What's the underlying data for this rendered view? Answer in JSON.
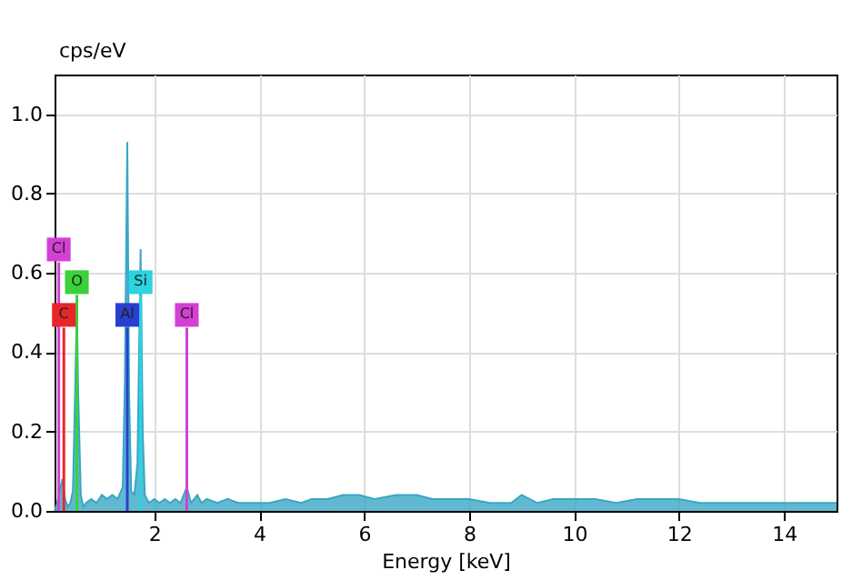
{
  "chart_data": {
    "type": "area",
    "xlabel": "Energy [keV]",
    "ylabel": "cps/eV",
    "xlim": [
      0.1,
      15
    ],
    "ylim": [
      0,
      1.1
    ],
    "xticks": [
      2,
      4,
      6,
      8,
      10,
      12,
      14
    ],
    "yticks": [
      {
        "value": 0,
        "label": "0.0"
      },
      0.2,
      0.4,
      0.6,
      0.8,
      {
        "value": 1,
        "label": "1.0"
      }
    ],
    "grid": true,
    "series": [
      {
        "color": "#3aa6c4",
        "x": [
          0.1,
          0.15,
          0.2,
          0.25,
          0.3,
          0.35,
          0.4,
          0.45,
          0.5,
          0.525,
          0.55,
          0.6,
          0.65,
          0.7,
          0.8,
          0.9,
          1.0,
          1.1,
          1.2,
          1.3,
          1.4,
          1.44,
          1.486,
          1.52,
          1.56,
          1.62,
          1.68,
          1.74,
          1.78,
          1.82,
          1.9,
          2.0,
          2.1,
          2.2,
          2.3,
          2.4,
          2.5,
          2.62,
          2.7,
          2.82,
          2.9,
          3.0,
          3.2,
          3.4,
          3.6,
          3.8,
          4.0,
          4.2,
          4.5,
          4.8,
          5.0,
          5.3,
          5.6,
          5.9,
          6.2,
          6.6,
          7.0,
          7.3,
          7.6,
          8.0,
          8.4,
          8.8,
          9.0,
          9.3,
          9.6,
          10.0,
          10.4,
          10.8,
          11.2,
          11.6,
          12.0,
          12.4,
          12.8,
          13.2,
          13.6,
          14.0,
          14.4,
          14.8,
          15.0
        ],
        "values": [
          0.0,
          0.02,
          0.05,
          0.08,
          0.03,
          0.01,
          0.02,
          0.05,
          0.35,
          0.52,
          0.3,
          0.04,
          0.01,
          0.02,
          0.03,
          0.02,
          0.04,
          0.03,
          0.04,
          0.03,
          0.06,
          0.33,
          0.93,
          0.3,
          0.05,
          0.04,
          0.12,
          0.66,
          0.2,
          0.04,
          0.02,
          0.03,
          0.02,
          0.03,
          0.02,
          0.03,
          0.02,
          0.06,
          0.02,
          0.04,
          0.02,
          0.03,
          0.02,
          0.03,
          0.02,
          0.02,
          0.02,
          0.02,
          0.03,
          0.02,
          0.03,
          0.03,
          0.04,
          0.04,
          0.03,
          0.04,
          0.04,
          0.03,
          0.03,
          0.03,
          0.02,
          0.02,
          0.04,
          0.02,
          0.03,
          0.03,
          0.03,
          0.02,
          0.03,
          0.03,
          0.03,
          0.02,
          0.02,
          0.02,
          0.02,
          0.02,
          0.02,
          0.02,
          0.02
        ]
      }
    ],
    "ref_lines": [
      {
        "axis": "x",
        "value": 0.277,
        "label": "C",
        "color": "#e8262a"
      },
      {
        "axis": "x",
        "value": 0.525,
        "label": "O",
        "color": "#3ad13a"
      },
      {
        "axis": "x",
        "value": 0.18,
        "label": "Cl",
        "color": "#d43fd4"
      },
      {
        "axis": "x",
        "value": 1.486,
        "label": "Al",
        "color": "#2a3fd0"
      },
      {
        "axis": "x",
        "value": 1.74,
        "label": "Si",
        "color": "#2ad4e0"
      },
      {
        "axis": "x",
        "value": 2.62,
        "label": "Cl",
        "color": "#d43fd4"
      }
    ]
  }
}
